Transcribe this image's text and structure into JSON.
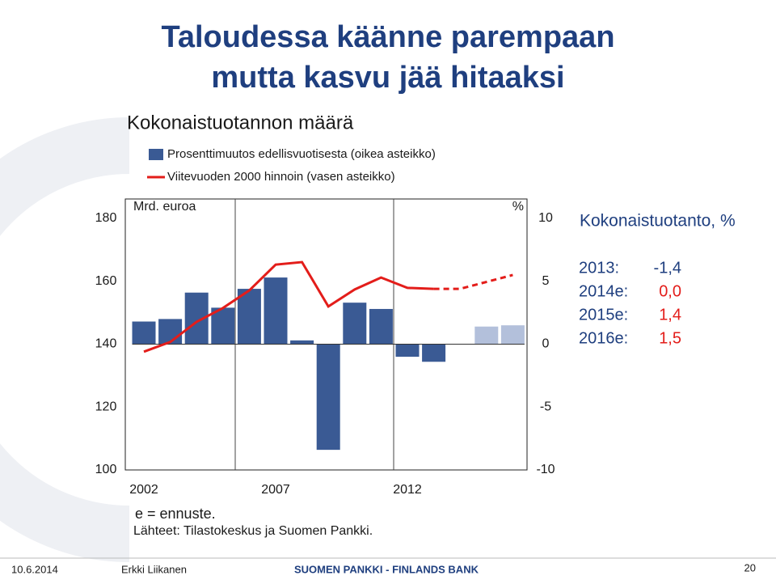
{
  "header": {
    "title_line1": "Taloudessa käänne parempaan",
    "title_line2": "mutta kasvu jää hitaaksi"
  },
  "chart_data": {
    "type": "bar-line",
    "title": "Kokonaistuotannon määrä",
    "y_label": "Mrd. euroa",
    "y2_label": "%",
    "categories": [
      "2002",
      null,
      null,
      null,
      null,
      "2007",
      null,
      null,
      null,
      null,
      "2012",
      null,
      null,
      null,
      null
    ],
    "series": [
      {
        "name": "Prosenttimuutos edellisvuotisesta (oikea asteikko)",
        "type": "bar",
        "axis": "y2",
        "color": "#3a5a94",
        "forecast_color": "#b3c0db",
        "forecast_from": 12,
        "values": [
          1.8,
          2.0,
          4.1,
          2.9,
          4.4,
          5.3,
          0.3,
          -8.4,
          3.3,
          2.8,
          -1.0,
          -1.4,
          0.0,
          1.4,
          1.5
        ]
      },
      {
        "name": "Viitevuoden 2000 hinnoin (vasen asteikko)",
        "type": "line",
        "axis": "y",
        "color": "#e31d1a",
        "dashed_from": 11,
        "values": [
          137.6,
          140.7,
          147.1,
          151.5,
          157.1,
          165.3,
          166.1,
          152.0,
          157.4,
          161.2,
          157.9,
          157.6,
          157.6,
          159.8,
          162.0
        ]
      }
    ],
    "ylim": [
      100,
      180
    ],
    "yticks": [
      100,
      120,
      140,
      160,
      180
    ],
    "y2lim": [
      -10,
      10
    ],
    "y2ticks": [
      -10,
      -5,
      0,
      5,
      10
    ],
    "notes": [
      "e = ennuste.",
      "Lähteet: Tilastokeskus ja Suomen Pankki."
    ]
  },
  "side_panel": {
    "title": "Kokonaistuotanto, %",
    "rows": [
      [
        "2013:",
        "-1,4"
      ],
      [
        "2014e:",
        "0,0"
      ],
      [
        "2015e:",
        "1,4"
      ],
      [
        "2016e:",
        "1,5"
      ]
    ]
  },
  "footer": {
    "date": "10.6.2014",
    "author": "Erkki Liikanen",
    "organization": "SUOMEN PANKKI - FINLANDS BANK",
    "page": "20"
  }
}
